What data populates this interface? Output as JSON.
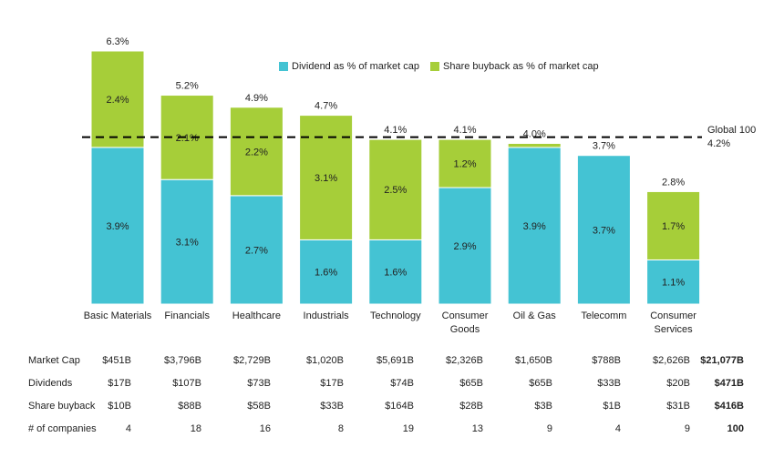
{
  "chart_data": {
    "type": "bar",
    "stacked": true,
    "categories": [
      "Basic Materials",
      "Financials",
      "Healthcare",
      "Industrials",
      "Technology",
      "Consumer Goods",
      "Oil & Gas",
      "Telecomm",
      "Consumer Services"
    ],
    "series": [
      {
        "name": "Dividend as % of market cap",
        "color": "#44C3D3",
        "values": [
          3.9,
          3.1,
          2.7,
          1.6,
          1.6,
          2.9,
          3.9,
          3.7,
          1.1
        ],
        "labels": [
          "3.9%",
          "3.1%",
          "2.7%",
          "1.6%",
          "1.6%",
          "2.9%",
          "3.9%",
          "3.7%",
          "1.1%"
        ]
      },
      {
        "name": "Share buyback as % of market cap",
        "color": "#A6CE39",
        "values": [
          2.4,
          2.1,
          2.2,
          3.1,
          2.5,
          1.2,
          0.1,
          0.0,
          1.7
        ],
        "labels": [
          "2.4%",
          "2.1%",
          "2.2%",
          "3.1%",
          "2.5%",
          "1.2%",
          "",
          "",
          "1.7%"
        ]
      }
    ],
    "totals": [
      "6.3%",
      "5.2%",
      "4.9%",
      "4.7%",
      "4.1%",
      "4.1%",
      "4.0%",
      "3.7%",
      "2.8%"
    ],
    "total_values": [
      6.3,
      5.2,
      4.9,
      4.7,
      4.1,
      4.1,
      4.0,
      3.7,
      2.8
    ],
    "reference_line": {
      "value": 4.2,
      "label": "Global 100",
      "value_label": "4.2%",
      "style": "dashed"
    },
    "ylim": [
      0,
      6.3
    ],
    "grid": false,
    "legend_position": "top-center",
    "title": "",
    "xlabel": "",
    "ylabel": ""
  },
  "table": {
    "rows": [
      {
        "label": "Market Cap",
        "cells": [
          "$451B",
          "$3,796B",
          "$2,729B",
          "$1,020B",
          "$5,691B",
          "$2,326B",
          "$1,650B",
          "$788B",
          "$2,626B"
        ],
        "total": "$21,077B"
      },
      {
        "label": "Dividends",
        "cells": [
          "$17B",
          "$107B",
          "$73B",
          "$17B",
          "$74B",
          "$65B",
          "$65B",
          "$33B",
          "$20B"
        ],
        "total": "$471B"
      },
      {
        "label": "Share buyback",
        "cells": [
          "$10B",
          "$88B",
          "$58B",
          "$33B",
          "$164B",
          "$28B",
          "$3B",
          "$1B",
          "$31B"
        ],
        "total": "$416B"
      },
      {
        "label": "# of companies",
        "cells": [
          "4",
          "18",
          "16",
          "8",
          "19",
          "13",
          "9",
          "4",
          "9"
        ],
        "total": "100"
      }
    ]
  }
}
